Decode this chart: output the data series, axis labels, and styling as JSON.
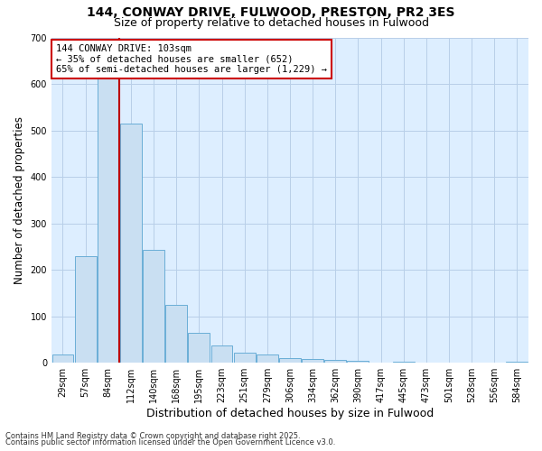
{
  "title1": "144, CONWAY DRIVE, FULWOOD, PRESTON, PR2 3ES",
  "title2": "Size of property relative to detached houses in Fulwood",
  "xlabel": "Distribution of detached houses by size in Fulwood",
  "ylabel": "Number of detached properties",
  "categories": [
    "29sqm",
    "57sqm",
    "84sqm",
    "112sqm",
    "140sqm",
    "168sqm",
    "195sqm",
    "223sqm",
    "251sqm",
    "279sqm",
    "306sqm",
    "334sqm",
    "362sqm",
    "390sqm",
    "417sqm",
    "445sqm",
    "473sqm",
    "501sqm",
    "528sqm",
    "556sqm",
    "584sqm"
  ],
  "values": [
    18,
    230,
    652,
    515,
    243,
    125,
    65,
    38,
    22,
    18,
    10,
    8,
    6,
    4,
    0,
    2,
    0,
    0,
    0,
    0,
    2
  ],
  "bar_color": "#c9dff2",
  "bar_edge_color": "#6aaed6",
  "red_line_index": 2,
  "annotation_text": "144 CONWAY DRIVE: 103sqm\n← 35% of detached houses are smaller (652)\n65% of semi-detached houses are larger (1,229) →",
  "annotation_box_facecolor": "#ffffff",
  "annotation_box_edgecolor": "#cc0000",
  "ylim": [
    0,
    700
  ],
  "yticks": [
    0,
    100,
    200,
    300,
    400,
    500,
    600,
    700
  ],
  "footer1": "Contains HM Land Registry data © Crown copyright and database right 2025.",
  "footer2": "Contains public sector information licensed under the Open Government Licence v3.0.",
  "fig_bg": "#ffffff",
  "plot_bg": "#ddeeff",
  "grid_color": "#b8cfe8",
  "title_fontsize": 10,
  "subtitle_fontsize": 9,
  "tick_fontsize": 7,
  "ylabel_fontsize": 8.5,
  "xlabel_fontsize": 9,
  "ann_fontsize": 7.5
}
